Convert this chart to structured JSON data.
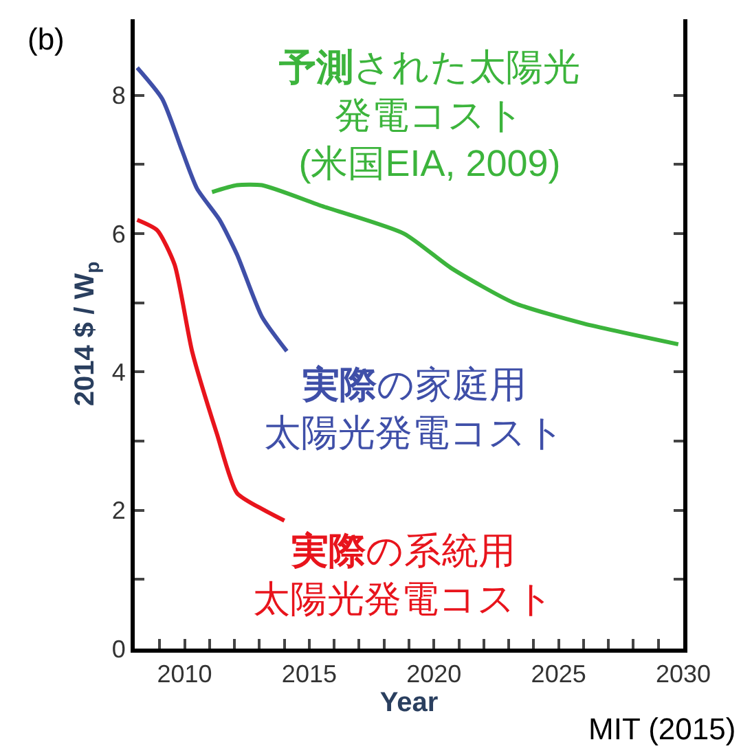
{
  "chart_data": {
    "type": "line",
    "xlabel": "Year",
    "ylabel": "2014 $ / W$_{p}$",
    "xlim": [
      2008,
      2030
    ],
    "ylim": [
      0,
      9.1
    ],
    "xticks": [
      {
        "value": 2009,
        "label": null
      },
      2010,
      {
        "value": 2011,
        "label": null
      },
      {
        "value": 2012,
        "label": null
      },
      {
        "value": 2013,
        "label": null
      },
      {
        "value": 2014,
        "label": null
      },
      2015,
      {
        "value": 2016,
        "label": null
      },
      {
        "value": 2017,
        "label": null
      },
      {
        "value": 2018,
        "label": null
      },
      {
        "value": 2019,
        "label": null
      },
      2020,
      {
        "value": 2021,
        "label": null
      },
      {
        "value": 2022,
        "label": null
      },
      {
        "value": 2023,
        "label": null
      },
      {
        "value": 2024,
        "label": null
      },
      2025,
      {
        "value": 2026,
        "label": null
      },
      {
        "value": 2027,
        "label": null
      },
      {
        "value": 2028,
        "label": null
      },
      {
        "value": 2029,
        "label": null
      },
      2030
    ],
    "yticks": [
      0,
      {
        "value": 1,
        "label": null
      },
      2,
      {
        "value": 3,
        "label": null
      },
      4,
      {
        "value": 5,
        "label": null
      },
      6,
      {
        "value": 7,
        "label": null
      },
      8
    ],
    "legend": false,
    "marker": "none",
    "line_style": "solid",
    "series": [
      {
        "name": "予測された太陽光発電コスト(米国EIA, 2009)",
        "color": "#3cb43c",
        "x": [
          2011.1,
          2012.1,
          2013.1,
          2015.5,
          2018.8,
          2020.7,
          2023.2,
          2026.0,
          2029.8
        ],
        "values": [
          6.6,
          6.7,
          6.7,
          6.4,
          6.0,
          5.5,
          5.0,
          4.7,
          4.4
        ]
      },
      {
        "name": "実際の家庭用太陽光発電コスト",
        "color": "#3f4fa8",
        "x": [
          2008.1,
          2009.1,
          2009.9,
          2010.5,
          2011.4,
          2012.1,
          2013.1,
          2014.1
        ],
        "values": [
          8.4,
          7.95,
          7.2,
          6.65,
          6.2,
          5.7,
          4.8,
          4.3
        ]
      },
      {
        "name": "実際の系統用太陽光発電コスト",
        "color": "#e8141c",
        "x": [
          2008.1,
          2008.9,
          2009.6,
          2010.3,
          2011.3,
          2012.1,
          2013.2,
          2014.0
        ],
        "values": [
          6.2,
          6.05,
          5.55,
          4.3,
          3.1,
          2.25,
          2.0,
          1.85
        ]
      }
    ],
    "annotations": [
      "(b)",
      "MIT (2015)"
    ]
  }
}
